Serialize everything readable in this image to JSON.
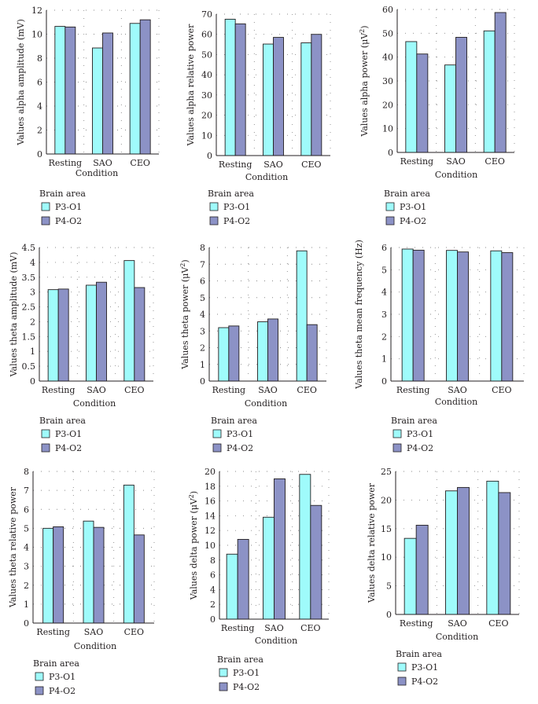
{
  "colors": {
    "p3_o1": "#9ffbfb",
    "p4_o2": "#8c92c6",
    "outline": "#231f20",
    "grid": "#8a8a8a"
  },
  "legend": {
    "title": "Brain area",
    "items": [
      "P3-O1",
      "P4-O2"
    ]
  },
  "chart_data": [
    {
      "type": "bar",
      "categories": [
        "Resting",
        "SAO",
        "CEO"
      ],
      "series": [
        {
          "name": "P3-O1",
          "values": [
            10.65,
            8.85,
            10.9
          ]
        },
        {
          "name": "P4-O2",
          "values": [
            10.6,
            10.1,
            11.2
          ]
        }
      ],
      "ylabel": "Values alpha amplitude (mV)",
      "xlabel": "Condition",
      "ylim": [
        0,
        12
      ],
      "yticks": [
        "0",
        "2",
        "4",
        "6",
        "8",
        "10",
        "12"
      ]
    },
    {
      "type": "bar",
      "categories": [
        "Resting",
        "SAO",
        "CEO"
      ],
      "series": [
        {
          "name": "P3-O1",
          "values": [
            67.5,
            55.2,
            55.8
          ]
        },
        {
          "name": "P4-O2",
          "values": [
            65.2,
            58.5,
            60
          ]
        }
      ],
      "ylabel": "Values alpha relative power",
      "xlabel": "Condition",
      "ylim": [
        0,
        70
      ],
      "yticks": [
        "0",
        "10",
        "20",
        "30",
        "40",
        "50",
        "60",
        "70"
      ]
    },
    {
      "type": "bar",
      "categories": [
        "Resting",
        "SAO",
        "CEO"
      ],
      "series": [
        {
          "name": "P3-O1",
          "values": [
            46.5,
            36.7,
            51
          ]
        },
        {
          "name": "P4-O2",
          "values": [
            41.3,
            48.3,
            58.7
          ]
        }
      ],
      "ylabel": "Values alpha power (μV²)",
      "xlabel": "Condition",
      "ylim": [
        0,
        60
      ],
      "yticks": [
        "0",
        "10",
        "20",
        "30",
        "40",
        "50",
        "60"
      ]
    },
    {
      "type": "bar",
      "categories": [
        "Resting",
        "SAO",
        "CEO"
      ],
      "series": [
        {
          "name": "P3-O1",
          "values": [
            3.08,
            3.23,
            4.06
          ]
        },
        {
          "name": "P4-O2",
          "values": [
            3.1,
            3.33,
            3.15
          ]
        }
      ],
      "ylabel": "Values theta amplitude (mV)",
      "xlabel": "Condition",
      "ylim": [
        0,
        4.5
      ],
      "yticks": [
        "0",
        "0.5",
        "1",
        "1.5",
        "2",
        "2.5",
        "3",
        "3.5",
        "4",
        "4.5"
      ]
    },
    {
      "type": "bar",
      "categories": [
        "Resting",
        "SAO",
        "CEO"
      ],
      "series": [
        {
          "name": "P3-O1",
          "values": [
            3.2,
            3.55,
            7.8
          ]
        },
        {
          "name": "P4-O2",
          "values": [
            3.3,
            3.72,
            3.38
          ]
        }
      ],
      "ylabel": "Values theta power (μV²)",
      "xlabel": "Condition",
      "ylim": [
        0,
        8
      ],
      "yticks": [
        "0",
        "1",
        "2",
        "3",
        "4",
        "5",
        "6",
        "7",
        "8"
      ]
    },
    {
      "type": "bar",
      "categories": [
        "Resting",
        "SAO",
        "CEO"
      ],
      "series": [
        {
          "name": "P3-O1",
          "values": [
            5.93,
            5.87,
            5.85
          ]
        },
        {
          "name": "P4-O2",
          "values": [
            5.88,
            5.8,
            5.77
          ]
        }
      ],
      "ylabel": "Values theta mean frequency (Hz)",
      "xlabel": "Condition",
      "ylim": [
        0,
        6
      ],
      "yticks": [
        "0",
        "1",
        "2",
        "3",
        "4",
        "5",
        "6"
      ]
    },
    {
      "type": "bar",
      "categories": [
        "Resting",
        "SAO",
        "CEO"
      ],
      "series": [
        {
          "name": "P3-O1",
          "values": [
            5,
            5.38,
            7.28
          ]
        },
        {
          "name": "P4-O2",
          "values": [
            5.08,
            5.05,
            4.65
          ]
        }
      ],
      "ylabel": "Values theta relative power",
      "xlabel": "Condition",
      "ylim": [
        0,
        8
      ],
      "yticks": [
        "0",
        "1",
        "2",
        "3",
        "4",
        "5",
        "6",
        "7",
        "8"
      ]
    },
    {
      "type": "bar",
      "categories": [
        "Resting",
        "SAO",
        "CEO"
      ],
      "series": [
        {
          "name": "P3-O1",
          "values": [
            8.8,
            13.8,
            19.6
          ]
        },
        {
          "name": "P4-O2",
          "values": [
            10.8,
            19,
            15.4
          ]
        }
      ],
      "ylabel": "Values delta power (μV²)",
      "xlabel": "Condition",
      "ylim": [
        0,
        20
      ],
      "yticks": [
        "0",
        "2",
        "4",
        "6",
        "8",
        "10",
        "12",
        "14",
        "16",
        "18",
        "20"
      ]
    },
    {
      "type": "bar",
      "categories": [
        "Resting",
        "SAO",
        "CEO"
      ],
      "series": [
        {
          "name": "P3-O1",
          "values": [
            13.3,
            21.6,
            23.3
          ]
        },
        {
          "name": "P4-O2",
          "values": [
            15.6,
            22.2,
            21.3
          ]
        }
      ],
      "ylabel": "Values delta relative power",
      "xlabel": "Condition",
      "ylim": [
        0,
        25
      ],
      "yticks": [
        "0",
        "5",
        "10",
        "15",
        "20",
        "25"
      ]
    }
  ]
}
